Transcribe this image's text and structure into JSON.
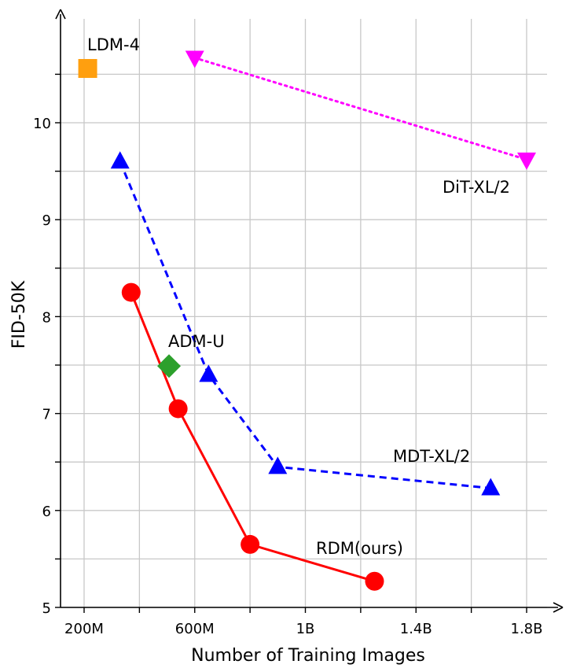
{
  "chart_data": {
    "type": "scatter",
    "xlabel": "Number of Training Images",
    "ylabel": "FID-50K",
    "xlim": [
      150,
      1850
    ],
    "ylim": [
      5,
      10.9
    ],
    "x_ticks": [
      200,
      400,
      600,
      800,
      1000,
      1200,
      1400,
      1600,
      1800
    ],
    "x_tick_labels": [
      "200M",
      "",
      "600M",
      "",
      "1B",
      "",
      "1.4B",
      "",
      "1.8B"
    ],
    "y_ticks": [
      5,
      5.5,
      6,
      6.5,
      7,
      7.5,
      8,
      8.5,
      9,
      9.5,
      10,
      10.5
    ],
    "y_tick_labels": [
      "5",
      "",
      "6",
      "",
      "7",
      "",
      "8",
      "",
      "9",
      "",
      "10",
      ""
    ],
    "grid": true,
    "series": [
      {
        "name": "RDM(ours)",
        "color": "#ff0000",
        "marker": "circle",
        "line": "solid",
        "x": [
          370,
          540,
          800,
          1250
        ],
        "y": [
          8.25,
          7.05,
          5.65,
          5.27
        ]
      },
      {
        "name": "MDT-XL/2",
        "color": "#0000ff",
        "marker": "triangle-up",
        "line": "dashed",
        "x": [
          330,
          650,
          900,
          1670
        ],
        "y": [
          9.6,
          7.4,
          6.45,
          6.23
        ]
      },
      {
        "name": "DiT-XL/2",
        "color": "#ff00ff",
        "marker": "triangle-down",
        "line": "dotted",
        "x": [
          600,
          1800
        ],
        "y": [
          10.67,
          9.62
        ]
      },
      {
        "name": "ADM-U",
        "color": "#2ca02c",
        "marker": "diamond",
        "line": "none",
        "x": [
          507
        ],
        "y": [
          7.49
        ]
      },
      {
        "name": "LDM-4",
        "color": "#ff9f0f",
        "marker": "square",
        "line": "none",
        "x": [
          213
        ],
        "y": [
          10.56
        ]
      }
    ]
  }
}
